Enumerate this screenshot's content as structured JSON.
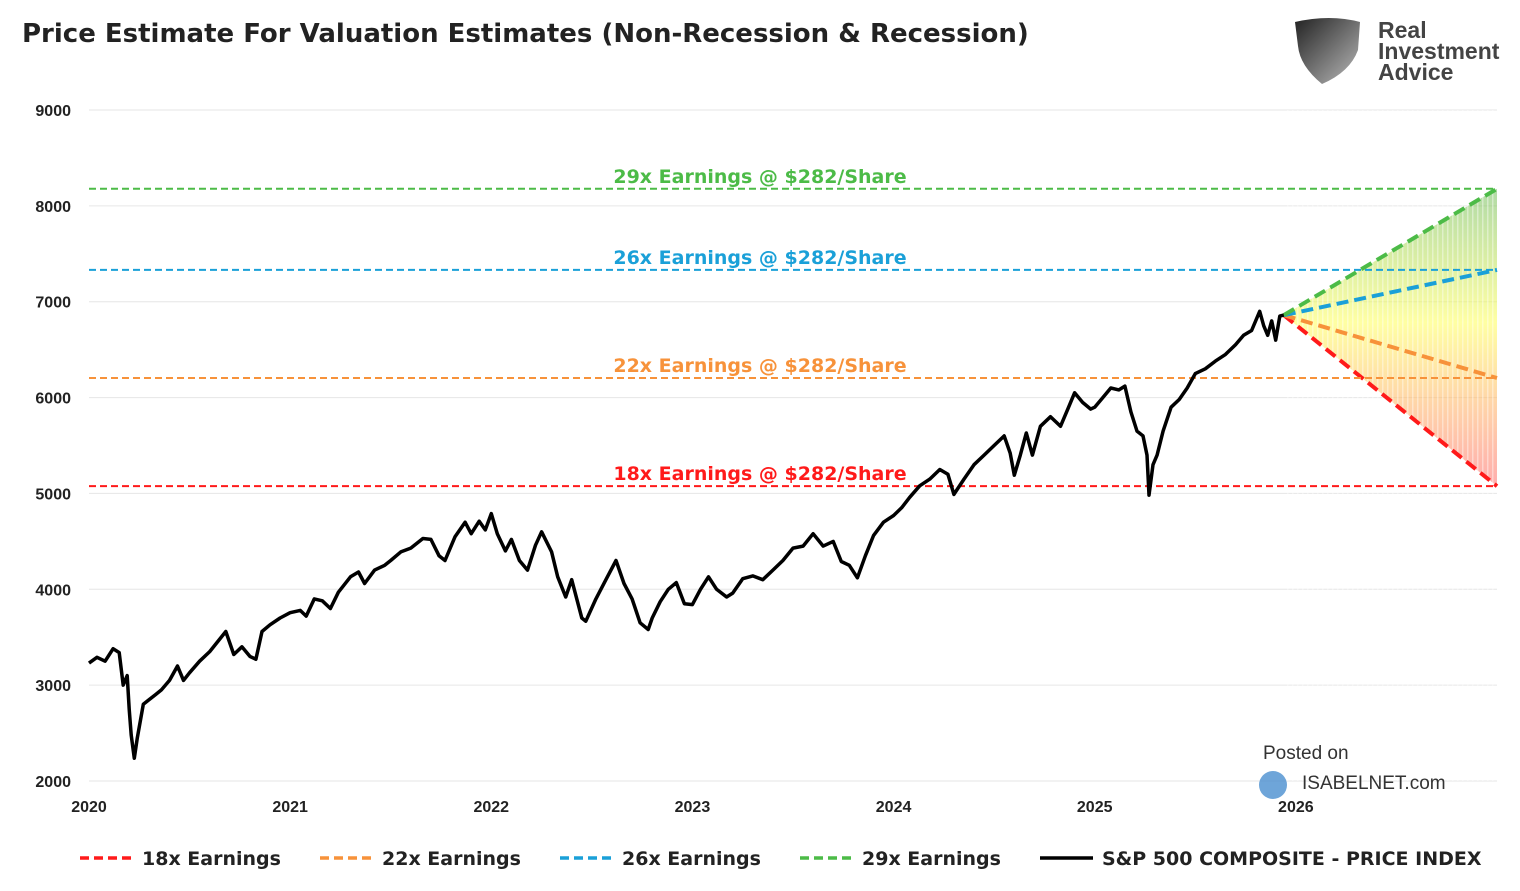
{
  "chart_data": {
    "type": "line",
    "title": "Price Estimate For Valuation Estimates (Non-Recession & Recession)",
    "xlim": [
      2020,
      2027
    ],
    "ylim": [
      2000,
      9000
    ],
    "x_ticks": [
      "2020",
      "2021",
      "2022",
      "2023",
      "2024",
      "2025",
      "2026"
    ],
    "y_ticks": [
      "2000",
      "3000",
      "4000",
      "5000",
      "6000",
      "7000",
      "8000",
      "9000"
    ],
    "grid": "horizontal",
    "legend_position": "bottom",
    "levels": [
      {
        "name": "18x Earnings",
        "label": "18x Earnings @ $282/Share",
        "value": 5076,
        "color": "#ff1a1a"
      },
      {
        "name": "22x Earnings",
        "label": "22x Earnings @ $282/Share",
        "value": 6204,
        "color": "#f7923a"
      },
      {
        "name": "26x Earnings",
        "label": "26x Earnings @ $282/Share",
        "value": 7332,
        "color": "#1aa0d8"
      },
      {
        "name": "29x Earnings",
        "label": "29x Earnings @ $282/Share",
        "value": 8178,
        "color": "#4cbb47"
      }
    ],
    "projection": {
      "start": [
        2025.94,
        6860
      ],
      "end_x": 2027
    },
    "series": [
      {
        "name": "S&P 500 COMPOSITE - PRICE INDEX",
        "color": "#000000",
        "points": [
          [
            2020.0,
            3230
          ],
          [
            2020.04,
            3290
          ],
          [
            2020.08,
            3250
          ],
          [
            2020.12,
            3380
          ],
          [
            2020.15,
            3340
          ],
          [
            2020.17,
            3000
          ],
          [
            2020.19,
            3100
          ],
          [
            2020.2,
            2750
          ],
          [
            2020.21,
            2480
          ],
          [
            2020.225,
            2237
          ],
          [
            2020.24,
            2450
          ],
          [
            2020.27,
            2800
          ],
          [
            2020.3,
            2850
          ],
          [
            2020.33,
            2900
          ],
          [
            2020.36,
            2950
          ],
          [
            2020.4,
            3050
          ],
          [
            2020.44,
            3200
          ],
          [
            2020.47,
            3050
          ],
          [
            2020.5,
            3130
          ],
          [
            2020.55,
            3250
          ],
          [
            2020.6,
            3350
          ],
          [
            2020.65,
            3480
          ],
          [
            2020.68,
            3560
          ],
          [
            2020.72,
            3320
          ],
          [
            2020.76,
            3400
          ],
          [
            2020.8,
            3300
          ],
          [
            2020.83,
            3270
          ],
          [
            2020.86,
            3560
          ],
          [
            2020.9,
            3630
          ],
          [
            2020.95,
            3700
          ],
          [
            2021.0,
            3756
          ],
          [
            2021.05,
            3780
          ],
          [
            2021.08,
            3720
          ],
          [
            2021.12,
            3900
          ],
          [
            2021.16,
            3880
          ],
          [
            2021.2,
            3800
          ],
          [
            2021.24,
            3970
          ],
          [
            2021.3,
            4130
          ],
          [
            2021.34,
            4180
          ],
          [
            2021.37,
            4060
          ],
          [
            2021.42,
            4200
          ],
          [
            2021.47,
            4250
          ],
          [
            2021.5,
            4300
          ],
          [
            2021.55,
            4390
          ],
          [
            2021.6,
            4430
          ],
          [
            2021.66,
            4530
          ],
          [
            2021.7,
            4520
          ],
          [
            2021.74,
            4350
          ],
          [
            2021.77,
            4300
          ],
          [
            2021.82,
            4550
          ],
          [
            2021.87,
            4700
          ],
          [
            2021.9,
            4580
          ],
          [
            2021.94,
            4710
          ],
          [
            2021.97,
            4620
          ],
          [
            2022.0,
            4790
          ],
          [
            2022.03,
            4580
          ],
          [
            2022.07,
            4400
          ],
          [
            2022.1,
            4520
          ],
          [
            2022.14,
            4300
          ],
          [
            2022.18,
            4200
          ],
          [
            2022.22,
            4460
          ],
          [
            2022.25,
            4600
          ],
          [
            2022.3,
            4390
          ],
          [
            2022.33,
            4130
          ],
          [
            2022.37,
            3920
          ],
          [
            2022.4,
            4100
          ],
          [
            2022.45,
            3700
          ],
          [
            2022.47,
            3667
          ],
          [
            2022.52,
            3900
          ],
          [
            2022.57,
            4100
          ],
          [
            2022.62,
            4300
          ],
          [
            2022.66,
            4060
          ],
          [
            2022.7,
            3900
          ],
          [
            2022.74,
            3650
          ],
          [
            2022.78,
            3580
          ],
          [
            2022.8,
            3700
          ],
          [
            2022.84,
            3870
          ],
          [
            2022.88,
            4000
          ],
          [
            2022.92,
            4070
          ],
          [
            2022.96,
            3850
          ],
          [
            2023.0,
            3840
          ],
          [
            2023.04,
            4000
          ],
          [
            2023.08,
            4130
          ],
          [
            2023.12,
            4000
          ],
          [
            2023.17,
            3920
          ],
          [
            2023.2,
            3960
          ],
          [
            2023.25,
            4110
          ],
          [
            2023.3,
            4140
          ],
          [
            2023.35,
            4100
          ],
          [
            2023.4,
            4200
          ],
          [
            2023.45,
            4300
          ],
          [
            2023.5,
            4430
          ],
          [
            2023.55,
            4450
          ],
          [
            2023.6,
            4580
          ],
          [
            2023.65,
            4450
          ],
          [
            2023.7,
            4500
          ],
          [
            2023.74,
            4290
          ],
          [
            2023.78,
            4250
          ],
          [
            2023.82,
            4120
          ],
          [
            2023.86,
            4350
          ],
          [
            2023.9,
            4560
          ],
          [
            2023.95,
            4700
          ],
          [
            2024.0,
            4770
          ],
          [
            2024.04,
            4850
          ],
          [
            2024.08,
            4960
          ],
          [
            2024.13,
            5080
          ],
          [
            2024.18,
            5150
          ],
          [
            2024.23,
            5250
          ],
          [
            2024.27,
            5200
          ],
          [
            2024.3,
            4990
          ],
          [
            2024.35,
            5150
          ],
          [
            2024.4,
            5300
          ],
          [
            2024.45,
            5400
          ],
          [
            2024.5,
            5500
          ],
          [
            2024.55,
            5600
          ],
          [
            2024.58,
            5420
          ],
          [
            2024.6,
            5190
          ],
          [
            2024.63,
            5400
          ],
          [
            2024.66,
            5630
          ],
          [
            2024.69,
            5400
          ],
          [
            2024.73,
            5700
          ],
          [
            2024.78,
            5800
          ],
          [
            2024.83,
            5700
          ],
          [
            2024.87,
            5900
          ],
          [
            2024.9,
            6050
          ],
          [
            2024.94,
            5950
          ],
          [
            2024.98,
            5880
          ],
          [
            2025.0,
            5900
          ],
          [
            2025.04,
            6000
          ],
          [
            2025.08,
            6100
          ],
          [
            2025.12,
            6080
          ],
          [
            2025.15,
            6120
          ],
          [
            2025.18,
            5850
          ],
          [
            2025.21,
            5650
          ],
          [
            2025.24,
            5600
          ],
          [
            2025.26,
            5400
          ],
          [
            2025.27,
            4982
          ],
          [
            2025.29,
            5300
          ],
          [
            2025.31,
            5400
          ],
          [
            2025.34,
            5650
          ],
          [
            2025.38,
            5900
          ],
          [
            2025.42,
            5980
          ],
          [
            2025.46,
            6100
          ],
          [
            2025.5,
            6250
          ],
          [
            2025.55,
            6300
          ],
          [
            2025.6,
            6380
          ],
          [
            2025.65,
            6450
          ],
          [
            2025.7,
            6550
          ],
          [
            2025.74,
            6650
          ],
          [
            2025.78,
            6700
          ],
          [
            2025.82,
            6900
          ],
          [
            2025.84,
            6750
          ],
          [
            2025.86,
            6650
          ],
          [
            2025.88,
            6800
          ],
          [
            2025.9,
            6600
          ],
          [
            2025.92,
            6850
          ],
          [
            2025.94,
            6860
          ]
        ]
      }
    ]
  },
  "logo": {
    "line1": "Real",
    "line2": "Investment",
    "line3": "Advice"
  },
  "watermark": {
    "line1": "Posted on",
    "line2": "ISABELNET.com"
  }
}
